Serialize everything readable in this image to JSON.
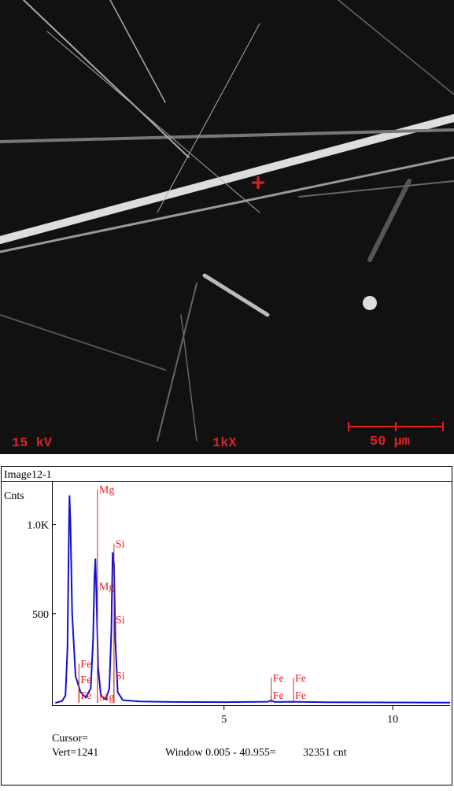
{
  "image": {
    "voltage": "15 kV",
    "magnification": "1kX",
    "scale_bar": "50 µm"
  },
  "chart_data": {
    "type": "line",
    "title": "Image12-1",
    "y_label": "Cnts",
    "color": "#1010d0",
    "x": [
      0.0,
      0.2,
      0.3,
      0.36,
      0.4,
      0.42,
      0.45,
      0.5,
      0.6,
      0.75,
      0.9,
      1.05,
      1.12,
      1.16,
      1.19,
      1.22,
      1.27,
      1.35,
      1.5,
      1.6,
      1.66,
      1.7,
      1.74,
      1.78,
      1.85,
      2.0,
      2.5,
      3.5,
      5.0,
      6.3,
      6.4,
      6.5,
      7.0,
      8.0,
      10.0,
      11.7
    ],
    "values": [
      0,
      10,
      40,
      300,
      900,
      1164,
      1000,
      500,
      150,
      60,
      30,
      80,
      350,
      700,
      810,
      600,
      200,
      40,
      20,
      80,
      400,
      845,
      780,
      350,
      60,
      15,
      8,
      5,
      4,
      6,
      14,
      5,
      6,
      3,
      2,
      1
    ],
    "xlim": [
      -0.1,
      11.7
    ],
    "ylim": [
      0,
      1241
    ],
    "xticks": [
      5,
      10
    ],
    "yticks": [
      500,
      {
        "value": 1000,
        "label": "1.0K"
      }
    ],
    "annotations": [
      {
        "label": "Mg",
        "x": 1.25,
        "y": 1199
      },
      {
        "label": "Mg",
        "x": 1.25,
        "y": 655
      },
      {
        "label": "Mg",
        "x": 1.25,
        "y": 35
      },
      {
        "label": "Si",
        "x": 1.74,
        "y": 894
      },
      {
        "label": "Si",
        "x": 1.74,
        "y": 469
      },
      {
        "label": "Si",
        "x": 1.74,
        "y": 155
      },
      {
        "label": "Fe",
        "x": 0.7,
        "y": 221
      },
      {
        "label": "Fe",
        "x": 0.7,
        "y": 133
      },
      {
        "label": "Fe",
        "x": 0.7,
        "y": 44
      },
      {
        "label": "Fe",
        "x": 6.4,
        "y": 142
      },
      {
        "label": "Fe",
        "x": 6.4,
        "y": 44
      },
      {
        "label": "Fe",
        "x": 7.06,
        "y": 142
      },
      {
        "label": "Fe",
        "x": 7.06,
        "y": 44
      }
    ],
    "cursor_label": "Cursor=",
    "vert": "Vert=1241",
    "window": "Window 0.005 - 40.955=",
    "total": "32351 cnt"
  }
}
